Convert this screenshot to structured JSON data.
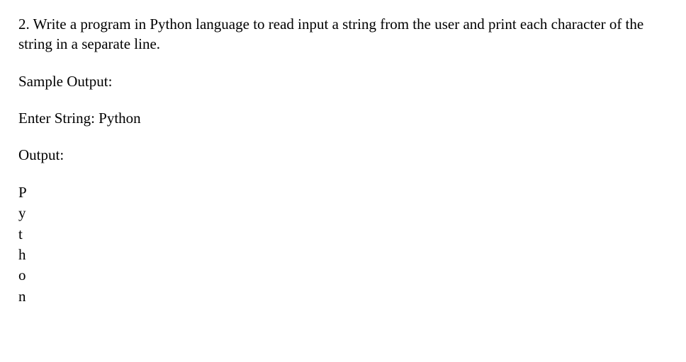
{
  "question": {
    "text": "2. Write a program in Python language to read input a string from the user and print each character of the string in a separate line."
  },
  "sample_output_label": "Sample Output:",
  "enter_string": "Enter String: Python",
  "output_label": "Output:",
  "chars": [
    "P",
    "y",
    "t",
    "h",
    "o",
    "n"
  ]
}
